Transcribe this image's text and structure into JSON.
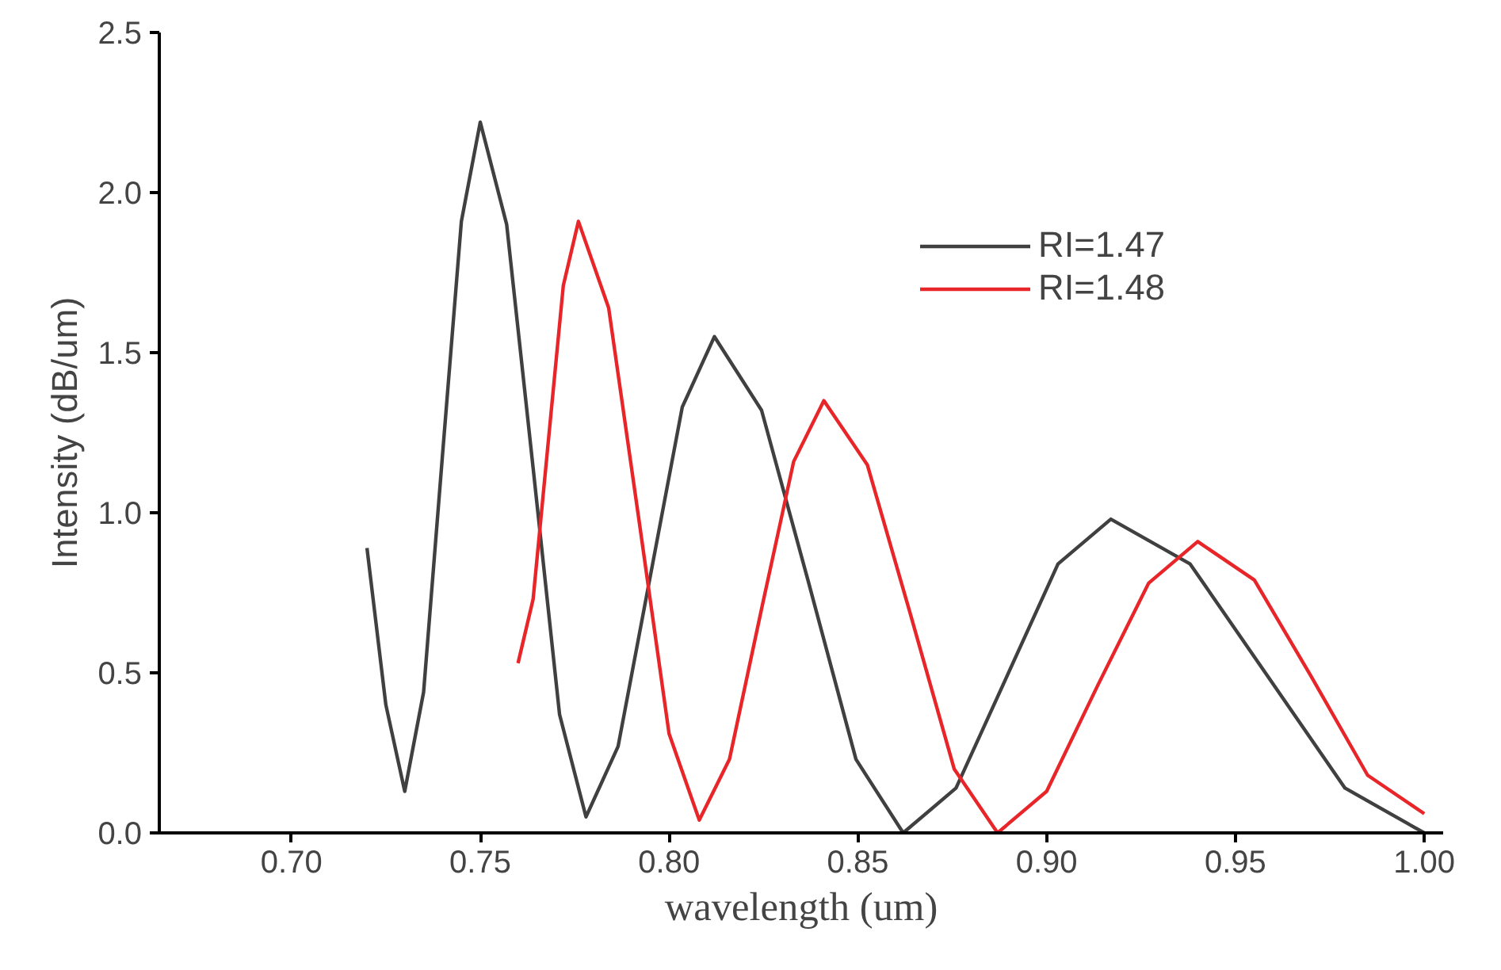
{
  "chart_data": {
    "type": "line",
    "xlabel": "wavelength (um)",
    "ylabel": "Intensity (dB/um)",
    "xlim": [
      0.665,
      1.005
    ],
    "ylim": [
      0,
      2.5
    ],
    "xticks": [
      {
        "value": 0.7,
        "label": "0.70"
      },
      {
        "value": 0.75,
        "label": "0.75"
      },
      {
        "value": 0.8,
        "label": "0.80"
      },
      {
        "value": 0.85,
        "label": "0.85"
      },
      {
        "value": 0.9,
        "label": "0.90"
      },
      {
        "value": 0.95,
        "label": "0.95"
      },
      {
        "value": 1.0,
        "label": "1.00"
      }
    ],
    "yticks": [
      {
        "value": 0,
        "label": "0.0"
      },
      {
        "value": 0.5,
        "label": "0.5"
      },
      {
        "value": 1.0,
        "label": "1.0"
      },
      {
        "value": 1.5,
        "label": "1.5"
      },
      {
        "value": 2.0,
        "label": "2.0"
      },
      {
        "value": 2.5,
        "label": "2.5"
      }
    ],
    "grid": false,
    "legend": "top right",
    "marker": "none",
    "line_style": "solid",
    "series": [
      {
        "name": "RI=1.47",
        "color": "#404040",
        "x": [
          0.72,
          0.725,
          0.73,
          0.735,
          0.74,
          0.745,
          0.75,
          0.757,
          0.764,
          0.771,
          0.778,
          0.7865,
          0.795,
          0.8035,
          0.812,
          0.8245,
          0.837,
          0.8495,
          0.862,
          0.876,
          0.8895,
          0.903,
          0.917,
          0.938,
          0.9585,
          0.979,
          1.0
        ],
        "values": [
          0.89,
          0.4,
          0.13,
          0.44,
          1.18,
          1.91,
          2.22,
          1.9,
          1.14,
          0.37,
          0.05,
          0.27,
          0.8,
          1.33,
          1.55,
          1.32,
          0.78,
          0.23,
          0.0,
          0.14,
          0.49,
          0.84,
          0.98,
          0.84,
          0.49,
          0.14,
          0.0
        ]
      },
      {
        "name": "RI=1.48",
        "color": "#e8262a",
        "x": [
          0.76,
          0.764,
          0.768,
          0.772,
          0.776,
          0.784,
          0.792,
          0.8,
          0.808,
          0.816,
          0.8245,
          0.833,
          0.841,
          0.8525,
          0.864,
          0.8755,
          0.887,
          0.9,
          0.9135,
          0.927,
          0.94,
          0.955,
          0.97,
          0.985,
          1.0
        ],
        "values": [
          0.53,
          0.73,
          1.22,
          1.71,
          1.91,
          1.64,
          0.98,
          0.31,
          0.04,
          0.23,
          0.7,
          1.16,
          1.35,
          1.15,
          0.68,
          0.2,
          0.0,
          0.13,
          0.46,
          0.78,
          0.91,
          0.79,
          0.49,
          0.18,
          0.06
        ]
      }
    ]
  }
}
